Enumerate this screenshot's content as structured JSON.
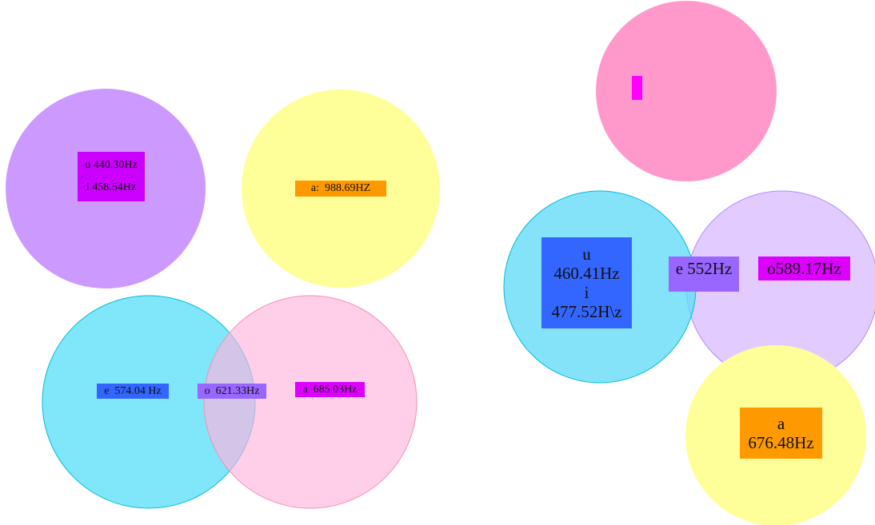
{
  "left": {
    "labels": [
      [
        "u 440.30Hz",
        "i 458.54Hz"
      ],
      [
        "a:  988.69HZ"
      ],
      [
        "e  574.04 Hz"
      ],
      [
        "o  621.33Hz"
      ],
      [
        "a  685.03Hz"
      ]
    ]
  },
  "right": {
    "labels": [
      [
        "u",
        "460.41Hz",
        "i",
        "477.52H\\z"
      ],
      [
        "e 552Hz"
      ],
      [
        "o589.17Hz"
      ],
      [
        "a",
        "676.48Hz"
      ]
    ]
  }
}
